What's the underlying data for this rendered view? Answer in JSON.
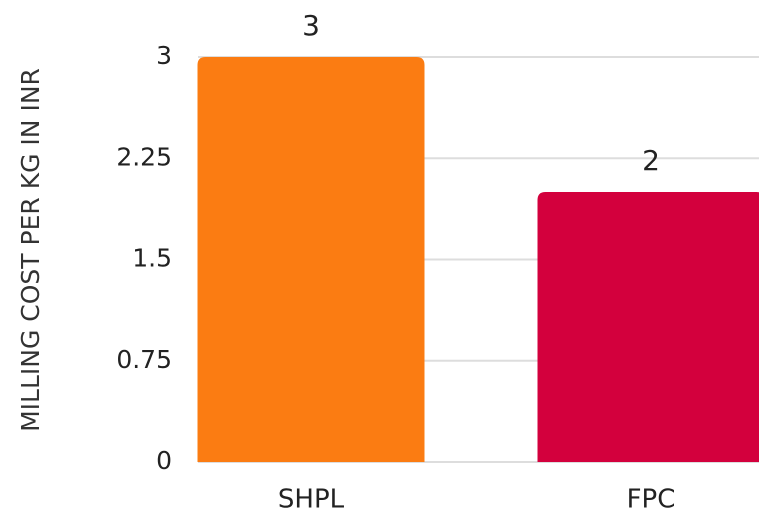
{
  "chart_data": {
    "type": "bar",
    "y_label": "MILLING COST PER KG IN INR",
    "categories": [
      "SHPL",
      "FPC"
    ],
    "values": [
      3,
      2
    ],
    "colors": [
      "#fb7c12",
      "#d3003d"
    ],
    "ylim": [
      0,
      3
    ],
    "yticks": [
      0,
      0.75,
      1.5,
      2.25,
      3
    ],
    "grid": true
  }
}
